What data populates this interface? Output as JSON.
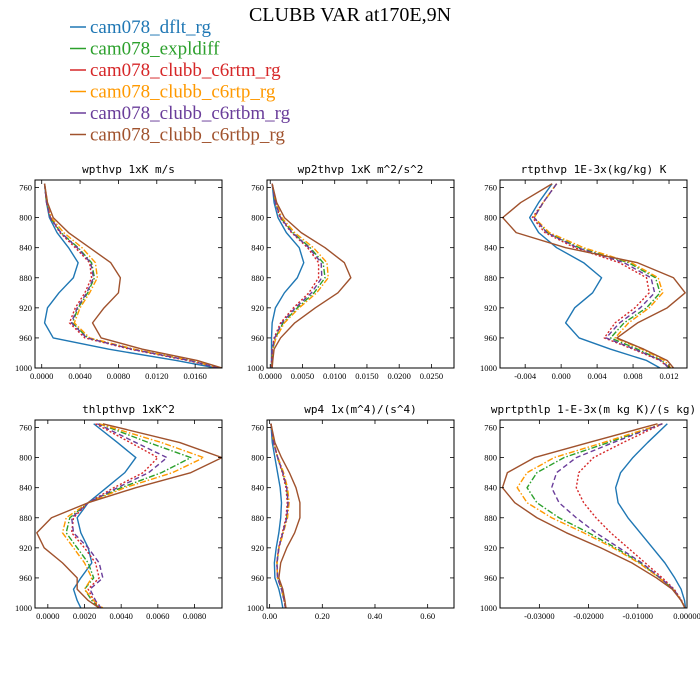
{
  "title": "CLUBB VAR at170E,9N",
  "colors": {
    "cam078_dflt_rg": "#1f77b4",
    "cam078_expldiff": "#2ca02c",
    "cam078_clubb_c6rtm_rg": "#d62728",
    "cam078_clubb_c6rtp_rg": "#ff9900",
    "cam078_clubb_c6rtbm_rg": "#6a3d9a",
    "cam078_clubb_c6rtbp_rg": "#a0522d"
  },
  "legend": [
    {
      "name": "cam078_dflt_rg",
      "style": "solid"
    },
    {
      "name": "cam078_expldiff",
      "style": "dashdot"
    },
    {
      "name": "cam078_clubb_c6rtm_rg",
      "style": "dotted"
    },
    {
      "name": "cam078_clubb_c6rtp_rg",
      "style": "dashdot"
    },
    {
      "name": "cam078_clubb_c6rtbm_rg",
      "style": "dashed"
    },
    {
      "name": "cam078_clubb_c6rtbp_rg",
      "style": "solid"
    }
  ],
  "chart_data": [
    {
      "type": "line",
      "title": "wpthvp  1xK m/s",
      "xlim": [
        -0.0007,
        0.0188
      ],
      "ylim": [
        1000,
        750
      ],
      "xticks": [
        0.0,
        0.004,
        0.008,
        0.012,
        0.016
      ],
      "xtick_labels": [
        "0.0000",
        "0.0040",
        "0.0080",
        "0.0120",
        "0.0160"
      ],
      "yticks": [
        760,
        800,
        840,
        880,
        920,
        960,
        1000
      ],
      "levels": [
        755,
        780,
        800,
        820,
        840,
        860,
        880,
        900,
        920,
        940,
        960,
        975,
        990,
        1000
      ],
      "series": [
        {
          "name": "cam078_dflt_rg",
          "values": [
            0.0003,
            0.0005,
            0.0008,
            0.0016,
            0.0028,
            0.0038,
            0.0033,
            0.0018,
            0.0006,
            0.0003,
            0.0012,
            0.007,
            0.014,
            0.0182
          ]
        },
        {
          "name": "cam078_expldiff",
          "values": [
            0.0003,
            0.0005,
            0.0009,
            0.002,
            0.0038,
            0.0052,
            0.0055,
            0.0048,
            0.0038,
            0.0032,
            0.0048,
            0.0095,
            0.0155,
            0.0185
          ]
        },
        {
          "name": "cam078_clubb_c6rtm_rg",
          "values": [
            0.0003,
            0.0005,
            0.0009,
            0.0019,
            0.0035,
            0.005,
            0.0052,
            0.0045,
            0.0035,
            0.0029,
            0.0045,
            0.0092,
            0.0152,
            0.0185
          ]
        },
        {
          "name": "cam078_clubb_c6rtp_rg",
          "values": [
            0.0003,
            0.0006,
            0.001,
            0.0023,
            0.0042,
            0.0056,
            0.0058,
            0.005,
            0.004,
            0.0034,
            0.005,
            0.0097,
            0.0156,
            0.0186
          ]
        },
        {
          "name": "cam078_clubb_c6rtbm_rg",
          "values": [
            0.0003,
            0.0005,
            0.0009,
            0.002,
            0.0037,
            0.0051,
            0.0054,
            0.0047,
            0.0037,
            0.0031,
            0.0047,
            0.0094,
            0.0154,
            0.0185
          ]
        },
        {
          "name": "cam078_clubb_c6rtbp_rg",
          "values": [
            0.0003,
            0.0006,
            0.0012,
            0.0028,
            0.005,
            0.0072,
            0.0082,
            0.008,
            0.0065,
            0.0053,
            0.0062,
            0.0105,
            0.0162,
            0.0188
          ]
        }
      ]
    },
    {
      "type": "line",
      "title": "wp2thvp  1xK m^2/s^2",
      "xlim": [
        -0.0005,
        0.0285
      ],
      "ylim": [
        1000,
        750
      ],
      "xticks": [
        0.0,
        0.005,
        0.01,
        0.015,
        0.02,
        0.025
      ],
      "xtick_labels": [
        "0.0000",
        "0.0050",
        "0.0100",
        "0.0150",
        "0.0200",
        "0.0250"
      ],
      "yticks": [
        760,
        800,
        840,
        880,
        920,
        960,
        1000
      ],
      "levels": [
        755,
        780,
        800,
        820,
        840,
        860,
        880,
        900,
        920,
        940,
        960,
        975,
        990,
        1000
      ],
      "series": [
        {
          "name": "cam078_dflt_rg",
          "values": [
            0.0003,
            0.0006,
            0.0012,
            0.0025,
            0.0045,
            0.0052,
            0.0042,
            0.0022,
            0.0008,
            0.0003,
            0.0002,
            0.0002,
            0.0002,
            0.0002
          ]
        },
        {
          "name": "cam078_expldiff",
          "values": [
            0.0003,
            0.0008,
            0.0016,
            0.0035,
            0.0062,
            0.0082,
            0.0085,
            0.0068,
            0.0042,
            0.002,
            0.0008,
            0.0004,
            0.0003,
            0.0003
          ]
        },
        {
          "name": "cam078_clubb_c6rtm_rg",
          "values": [
            0.0003,
            0.0008,
            0.0015,
            0.0033,
            0.0058,
            0.0075,
            0.0075,
            0.006,
            0.0036,
            0.0016,
            0.0006,
            0.0003,
            0.0002,
            0.0002
          ]
        },
        {
          "name": "cam078_clubb_c6rtp_rg",
          "values": [
            0.0003,
            0.0009,
            0.0018,
            0.0038,
            0.0067,
            0.0088,
            0.009,
            0.0072,
            0.0045,
            0.0022,
            0.0009,
            0.0004,
            0.0003,
            0.0003
          ]
        },
        {
          "name": "cam078_clubb_c6rtbm_rg",
          "values": [
            0.0003,
            0.0008,
            0.0016,
            0.0034,
            0.006,
            0.0079,
            0.008,
            0.0064,
            0.0039,
            0.0018,
            0.0007,
            0.0003,
            0.0003,
            0.0003
          ]
        },
        {
          "name": "cam078_clubb_c6rtbp_rg",
          "values": [
            0.0003,
            0.001,
            0.0022,
            0.0048,
            0.0085,
            0.0115,
            0.0125,
            0.0105,
            0.007,
            0.0038,
            0.0016,
            0.0006,
            0.0004,
            0.0003
          ]
        }
      ]
    },
    {
      "type": "line",
      "title": "rtpthvp  1E-3x(kg/kg) K",
      "xlim": [
        -0.0068,
        0.014
      ],
      "ylim": [
        1000,
        750
      ],
      "xticks": [
        -0.004,
        0.0,
        0.004,
        0.008,
        0.012
      ],
      "xtick_labels": [
        "-0.004",
        "0.000",
        "0.004",
        "0.008",
        "0.012"
      ],
      "yticks": [
        760,
        800,
        840,
        880,
        920,
        960,
        1000
      ],
      "levels": [
        755,
        780,
        800,
        820,
        840,
        860,
        880,
        900,
        920,
        940,
        960,
        975,
        990,
        1000
      ],
      "series": [
        {
          "name": "cam078_dflt_rg",
          "values": [
            -0.001,
            -0.0025,
            -0.0035,
            -0.0025,
            -0.0005,
            0.0025,
            0.0045,
            0.0035,
            0.0015,
            0.0005,
            0.002,
            0.0055,
            0.0095,
            0.011
          ]
        },
        {
          "name": "cam078_expldiff",
          "values": [
            -0.0005,
            -0.002,
            -0.003,
            -0.0015,
            0.002,
            0.0075,
            0.0105,
            0.011,
            0.0095,
            0.007,
            0.0055,
            0.0085,
            0.0112,
            0.012
          ]
        },
        {
          "name": "cam078_clubb_c6rtm_rg",
          "values": [
            -0.0005,
            -0.002,
            -0.0032,
            -0.0018,
            0.0015,
            0.0065,
            0.0095,
            0.0098,
            0.0082,
            0.006,
            0.0048,
            0.008,
            0.011,
            0.012
          ]
        },
        {
          "name": "cam078_clubb_c6rtp_rg",
          "values": [
            -0.0005,
            -0.002,
            -0.003,
            -0.0013,
            0.0025,
            0.0078,
            0.0108,
            0.0113,
            0.0098,
            0.0075,
            0.006,
            0.009,
            0.0115,
            0.0122
          ]
        },
        {
          "name": "cam078_clubb_c6rtbm_rg",
          "values": [
            -0.0005,
            -0.002,
            -0.003,
            -0.0016,
            0.0018,
            0.007,
            0.01,
            0.0104,
            0.0088,
            0.0065,
            0.005,
            0.0082,
            0.0111,
            0.012
          ]
        },
        {
          "name": "cam078_clubb_c6rtbp_rg",
          "values": [
            -0.001,
            -0.0045,
            -0.0065,
            -0.005,
            0.0005,
            0.0085,
            0.0125,
            0.0138,
            0.0118,
            0.0085,
            0.0062,
            0.0092,
            0.0118,
            0.0125
          ]
        }
      ]
    },
    {
      "type": "line",
      "title": "thlpthvp  1xK^2",
      "xlim": [
        -0.0007,
        0.0095
      ],
      "ylim": [
        1000,
        750
      ],
      "xticks": [
        0.0,
        0.002,
        0.004,
        0.006,
        0.008
      ],
      "xtick_labels": [
        "0.0000",
        "0.0020",
        "0.0040",
        "0.0060",
        "0.0080"
      ],
      "yticks": [
        760,
        800,
        840,
        880,
        920,
        960,
        1000
      ],
      "levels": [
        755,
        780,
        800,
        820,
        840,
        860,
        880,
        900,
        920,
        940,
        960,
        975,
        990,
        1000
      ],
      "series": [
        {
          "name": "cam078_dflt_rg",
          "values": [
            0.0025,
            0.0038,
            0.0048,
            0.0042,
            0.0032,
            0.0022,
            0.0016,
            0.0018,
            0.0022,
            0.0024,
            0.0018,
            0.0014,
            0.0016,
            0.0018
          ]
        },
        {
          "name": "cam078_expldiff",
          "values": [
            0.0028,
            0.0055,
            0.0078,
            0.0062,
            0.004,
            0.0022,
            0.0012,
            0.001,
            0.0016,
            0.0022,
            0.0025,
            0.002,
            0.0024,
            0.0028
          ]
        },
        {
          "name": "cam078_clubb_c6rtm_rg",
          "values": [
            0.0026,
            0.0045,
            0.006,
            0.0052,
            0.0036,
            0.0022,
            0.0014,
            0.0013,
            0.002,
            0.0026,
            0.0028,
            0.0022,
            0.0025,
            0.0028
          ]
        },
        {
          "name": "cam078_clubb_c6rtp_rg",
          "values": [
            0.0028,
            0.0062,
            0.0085,
            0.0068,
            0.0042,
            0.0022,
            0.001,
            0.0008,
            0.0014,
            0.002,
            0.0024,
            0.002,
            0.0025,
            0.003
          ]
        },
        {
          "name": "cam078_clubb_c6rtbm_rg",
          "values": [
            0.0027,
            0.0048,
            0.0065,
            0.0055,
            0.0038,
            0.0022,
            0.0013,
            0.0014,
            0.0022,
            0.0028,
            0.003,
            0.0023,
            0.0026,
            0.0029
          ]
        },
        {
          "name": "cam078_clubb_c6rtbp_rg",
          "values": [
            0.003,
            0.0072,
            0.0095,
            0.0078,
            0.0048,
            0.0022,
            0.0002,
            -0.0006,
            -0.0002,
            0.0008,
            0.0016,
            0.0016,
            0.0022,
            0.0028
          ]
        }
      ]
    },
    {
      "type": "line",
      "title": "wp4  1x(m^4)/(s^4)",
      "xlim": [
        -0.01,
        0.7
      ],
      "ylim": [
        1000,
        750
      ],
      "xticks": [
        0.0,
        0.2,
        0.4,
        0.6
      ],
      "xtick_labels": [
        "0.00",
        "0.20",
        "0.40",
        "0.60"
      ],
      "yticks": [
        760,
        800,
        840,
        880,
        920,
        960,
        1000
      ],
      "levels": [
        755,
        780,
        800,
        820,
        840,
        860,
        880,
        900,
        920,
        940,
        960,
        975,
        990,
        1000
      ],
      "series": [
        {
          "name": "cam078_dflt_rg",
          "values": [
            0.005,
            0.01,
            0.02,
            0.03,
            0.04,
            0.045,
            0.042,
            0.035,
            0.025,
            0.018,
            0.02,
            0.035,
            0.045,
            0.05
          ]
        },
        {
          "name": "cam078_expldiff",
          "values": [
            0.005,
            0.015,
            0.03,
            0.05,
            0.065,
            0.07,
            0.065,
            0.05,
            0.035,
            0.028,
            0.03,
            0.045,
            0.055,
            0.06
          ]
        },
        {
          "name": "cam078_clubb_c6rtm_rg",
          "values": [
            0.005,
            0.015,
            0.03,
            0.048,
            0.062,
            0.067,
            0.062,
            0.048,
            0.034,
            0.027,
            0.03,
            0.045,
            0.055,
            0.06
          ]
        },
        {
          "name": "cam078_clubb_c6rtp_rg",
          "values": [
            0.005,
            0.016,
            0.032,
            0.053,
            0.068,
            0.074,
            0.068,
            0.052,
            0.036,
            0.028,
            0.03,
            0.046,
            0.056,
            0.06
          ]
        },
        {
          "name": "cam078_clubb_c6rtbm_rg",
          "values": [
            0.005,
            0.015,
            0.031,
            0.05,
            0.065,
            0.07,
            0.065,
            0.05,
            0.035,
            0.028,
            0.03,
            0.045,
            0.055,
            0.06
          ]
        },
        {
          "name": "cam078_clubb_c6rtbp_rg",
          "values": [
            0.005,
            0.02,
            0.045,
            0.075,
            0.1,
            0.115,
            0.115,
            0.095,
            0.065,
            0.042,
            0.035,
            0.05,
            0.058,
            0.062
          ]
        }
      ]
    },
    {
      "type": "line",
      "title": "wprtpthlp  1-E-3x(m kg K)/(s kg)",
      "xlim": [
        -0.038,
        0.0
      ],
      "ylim": [
        1000,
        750
      ],
      "xticks": [
        -0.03,
        -0.02,
        -0.01,
        0.0
      ],
      "xtick_labels": [
        "-0.03000",
        "-0.02000",
        "-0.01000",
        "0.00000"
      ],
      "yticks": [
        760,
        800,
        840,
        880,
        920,
        960,
        1000
      ],
      "levels": [
        755,
        780,
        800,
        820,
        840,
        860,
        880,
        900,
        920,
        940,
        960,
        975,
        990,
        1000
      ],
      "series": [
        {
          "name": "cam078_dflt_rg",
          "values": [
            -0.004,
            -0.008,
            -0.011,
            -0.0135,
            -0.0145,
            -0.014,
            -0.012,
            -0.0095,
            -0.007,
            -0.0045,
            -0.0025,
            -0.0012,
            -0.0005,
            -0.0003
          ]
        },
        {
          "name": "cam078_expldiff",
          "values": [
            -0.005,
            -0.016,
            -0.025,
            -0.0305,
            -0.0325,
            -0.0305,
            -0.026,
            -0.02,
            -0.0145,
            -0.0095,
            -0.0055,
            -0.0028,
            -0.0012,
            -0.0004
          ]
        },
        {
          "name": "cam078_clubb_c6rtm_rg",
          "values": [
            -0.005,
            -0.013,
            -0.019,
            -0.022,
            -0.0225,
            -0.021,
            -0.0185,
            -0.0155,
            -0.012,
            -0.0085,
            -0.005,
            -0.0026,
            -0.0011,
            -0.0004
          ]
        },
        {
          "name": "cam078_clubb_c6rtp_rg",
          "values": [
            -0.005,
            -0.017,
            -0.027,
            -0.0325,
            -0.0345,
            -0.0325,
            -0.0275,
            -0.021,
            -0.015,
            -0.0098,
            -0.0056,
            -0.0028,
            -0.0012,
            -0.0004
          ]
        },
        {
          "name": "cam078_clubb_c6rtbm_rg",
          "values": [
            -0.005,
            -0.015,
            -0.0225,
            -0.0265,
            -0.0275,
            -0.026,
            -0.0225,
            -0.0185,
            -0.0138,
            -0.0092,
            -0.0054,
            -0.0027,
            -0.0012,
            -0.0004
          ]
        },
        {
          "name": "cam078_clubb_c6rtbp_rg",
          "values": [
            -0.006,
            -0.02,
            -0.031,
            -0.0365,
            -0.0375,
            -0.035,
            -0.0305,
            -0.0245,
            -0.0175,
            -0.0112,
            -0.0062,
            -0.003,
            -0.0012,
            -0.0004
          ]
        }
      ]
    }
  ]
}
